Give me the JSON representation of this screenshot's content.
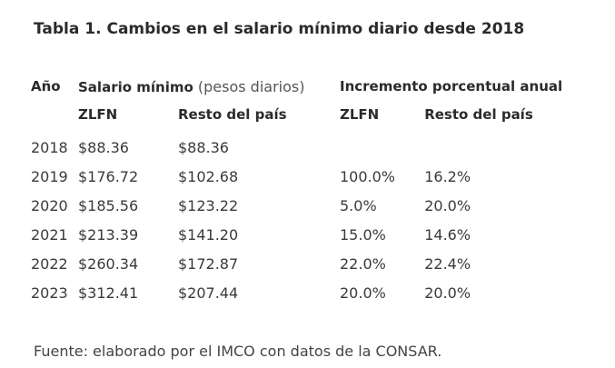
{
  "title": "Tabla 1. Cambios en el salario mínimo diario desde 2018",
  "header": {
    "year": "Año",
    "salary_bold": "Salario mínimo",
    "salary_light": " (pesos diarios)",
    "increase": "Incremento porcentual anual",
    "zlfn_1": "ZLFN",
    "rest_1": "Resto del país",
    "zlfn_2": "ZLFN",
    "rest_2": "Resto del país"
  },
  "rows": [
    {
      "year": "2018",
      "zlfn": "$88.36",
      "rest": "$88.36",
      "zlfn_pct": "",
      "rest_pct": ""
    },
    {
      "year": "2019",
      "zlfn": "$176.72",
      "rest": "$102.68",
      "zlfn_pct": "100.0%",
      "rest_pct": "16.2%"
    },
    {
      "year": "2020",
      "zlfn": "$185.56",
      "rest": "$123.22",
      "zlfn_pct": "5.0%",
      "rest_pct": "20.0%"
    },
    {
      "year": "2021",
      "zlfn": "$213.39",
      "rest": "$141.20",
      "zlfn_pct": "15.0%",
      "rest_pct": "14.6%"
    },
    {
      "year": "2022",
      "zlfn": "$260.34",
      "rest": "$172.87",
      "zlfn_pct": "22.0%",
      "rest_pct": "22.4%"
    },
    {
      "year": "2023",
      "zlfn": "$312.41",
      "rest": "$207.44",
      "zlfn_pct": "20.0%",
      "rest_pct": "20.0%"
    }
  ],
  "source": "Fuente: elaborado por el IMCO con datos de la CONSAR."
}
